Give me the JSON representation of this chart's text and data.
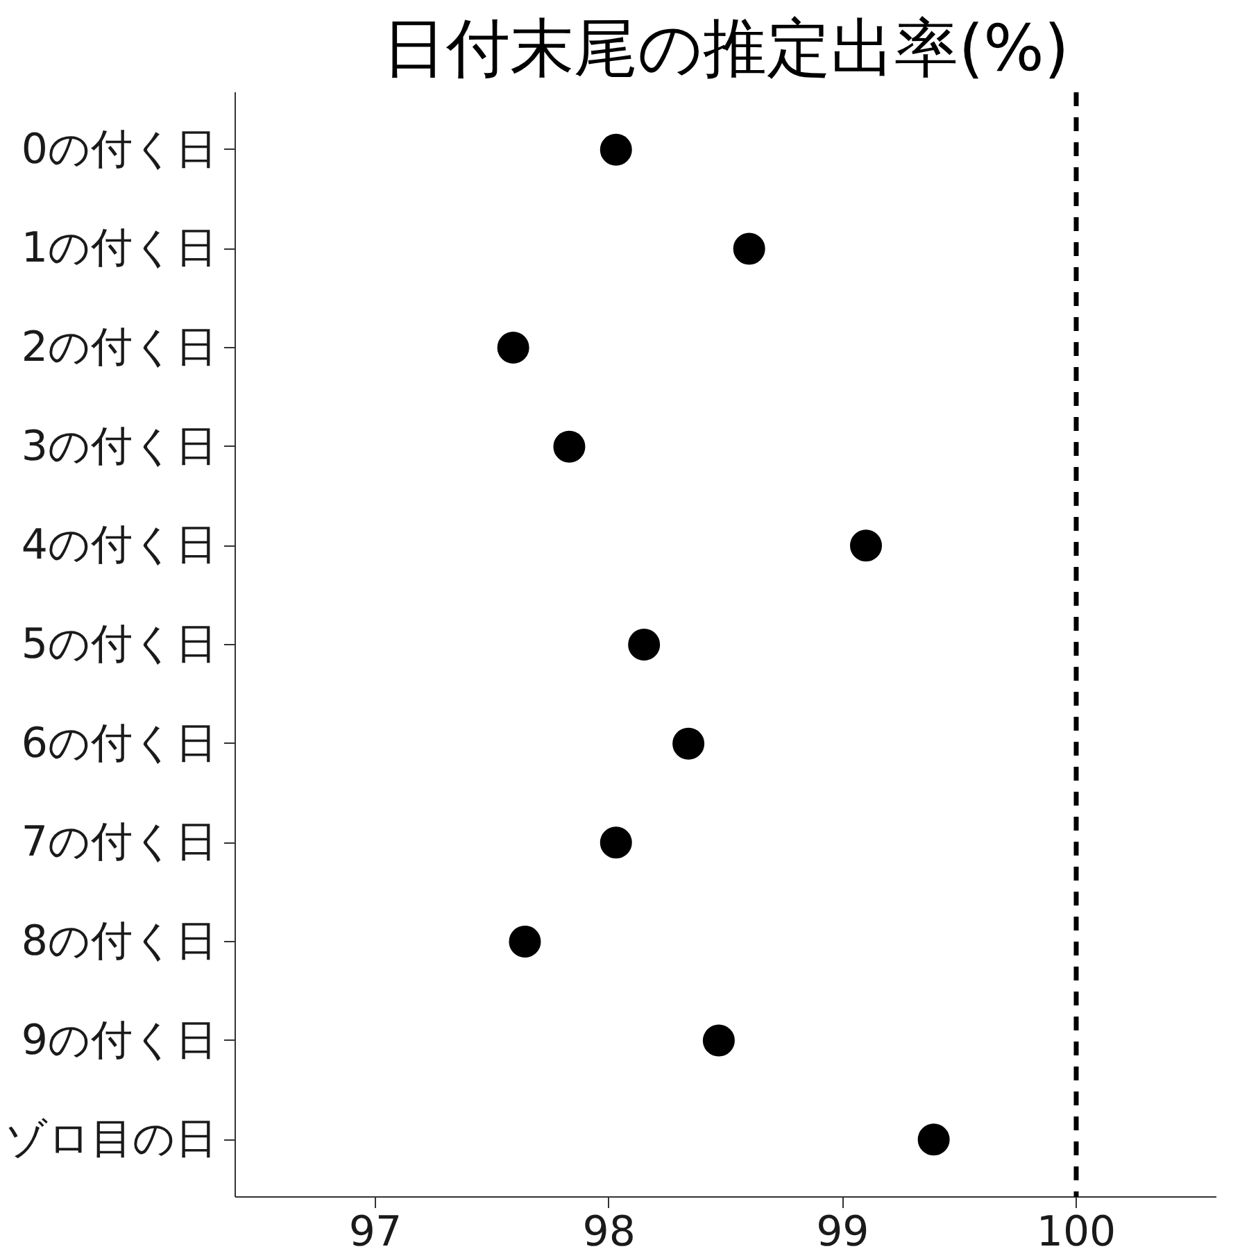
{
  "chart_data": {
    "type": "scatter",
    "title": "日付末尾の推定出率(%)",
    "orientation": "horizontal",
    "categories": [
      "0の付く日",
      "1の付く日",
      "2の付く日",
      "3の付く日",
      "4の付く日",
      "5の付く日",
      "6の付く日",
      "7の付く日",
      "8の付く日",
      "9の付く日",
      "ゾロ目の日"
    ],
    "values": [
      98.03,
      98.6,
      97.59,
      97.83,
      99.1,
      98.15,
      98.34,
      98.03,
      97.64,
      98.47,
      99.39
    ],
    "color": "#000000",
    "marker": "circle",
    "grid": false,
    "xlim": [
      96.4,
      100.6
    ],
    "xticks": [
      97,
      98,
      99,
      100
    ],
    "ref_lines": [
      {
        "axis": "x",
        "value": 100,
        "line_style": "dashed",
        "color": "#000000"
      }
    ]
  }
}
